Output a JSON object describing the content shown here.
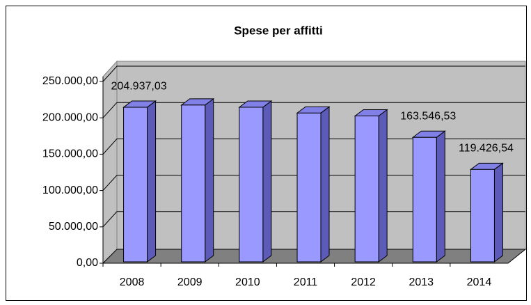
{
  "chart_data": {
    "type": "bar3d",
    "title": "Spese per affitti",
    "categories": [
      "2008",
      "2009",
      "2010",
      "2011",
      "2012",
      "2013",
      "2014"
    ],
    "values": [
      204937.03,
      208000,
      205000,
      197000,
      193000,
      163546.53,
      119426.54
    ],
    "value_labels": [
      "204.937,03",
      null,
      null,
      null,
      null,
      "163.546,53",
      "119.426,54"
    ],
    "color": "#9999ff",
    "ylim": [
      0,
      250000
    ],
    "yticks": [
      {
        "value": 0,
        "label": "0,00"
      },
      {
        "value": 50000,
        "label": "50.000,00"
      },
      {
        "value": 100000,
        "label": "100.000,00"
      },
      {
        "value": 150000,
        "label": "150.000,00"
      },
      {
        "value": 200000,
        "label": "200.000,00"
      },
      {
        "value": 250000,
        "label": "250.000,00"
      }
    ],
    "grid": true
  }
}
